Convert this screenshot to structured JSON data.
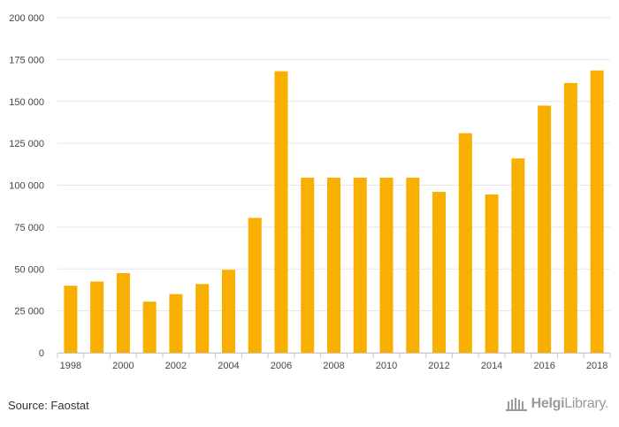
{
  "chart_data": {
    "type": "bar",
    "title": "",
    "xlabel": "",
    "ylabel": "",
    "ylim": [
      0,
      200000
    ],
    "y_ticks": [
      0,
      25000,
      50000,
      75000,
      100000,
      125000,
      150000,
      175000,
      200000
    ],
    "y_tick_labels": [
      "0",
      "25 000",
      "50 000",
      "75 000",
      "100 000",
      "125 000",
      "150 000",
      "175 000",
      "200 000"
    ],
    "categories": [
      "1998",
      "1999",
      "2000",
      "2001",
      "2002",
      "2003",
      "2004",
      "2005",
      "2006",
      "2007",
      "2008",
      "2009",
      "2010",
      "2011",
      "2012",
      "2013",
      "2014",
      "2015",
      "2016",
      "2017",
      "2018"
    ],
    "x_tick_labels": [
      "1998",
      "2000",
      "2002",
      "2004",
      "2006",
      "2008",
      "2010",
      "2012",
      "2014",
      "2016",
      "2018"
    ],
    "values": [
      40000,
      42500,
      47500,
      30500,
      35000,
      41000,
      49500,
      80500,
      168000,
      104500,
      104500,
      104500,
      104500,
      104500,
      96000,
      131000,
      94500,
      116000,
      147500,
      161000,
      168500
    ],
    "bar_color": "#F9AF00",
    "grid": true
  },
  "footer": {
    "source": "Source: Faostat",
    "brand_bold": "Helgi",
    "brand_rest": "Library."
  }
}
